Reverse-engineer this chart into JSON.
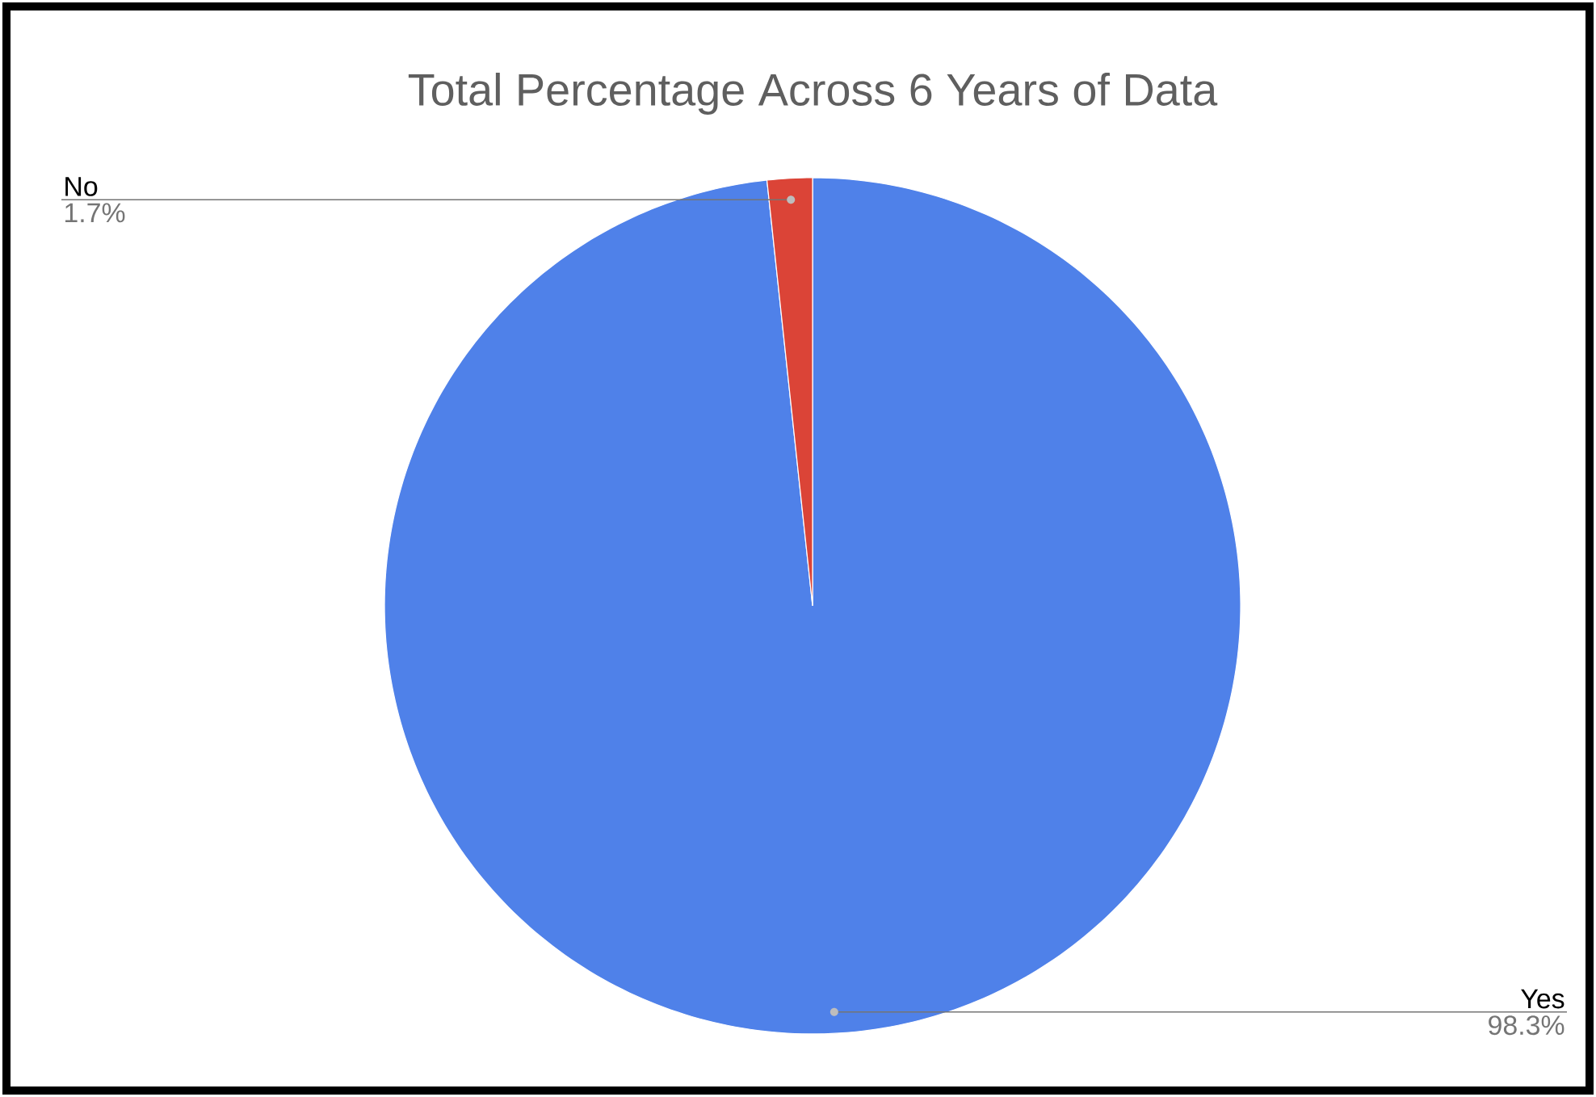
{
  "chart_data": {
    "type": "pie",
    "title": "Total Percentage Across 6 Years of Data",
    "categories": [
      "Yes",
      "No"
    ],
    "values": [
      98.3,
      1.7
    ],
    "colors": [
      "#4f81e9",
      "#db4437"
    ],
    "value_labels": [
      "98.3%",
      "1.7%"
    ],
    "legend": false
  }
}
